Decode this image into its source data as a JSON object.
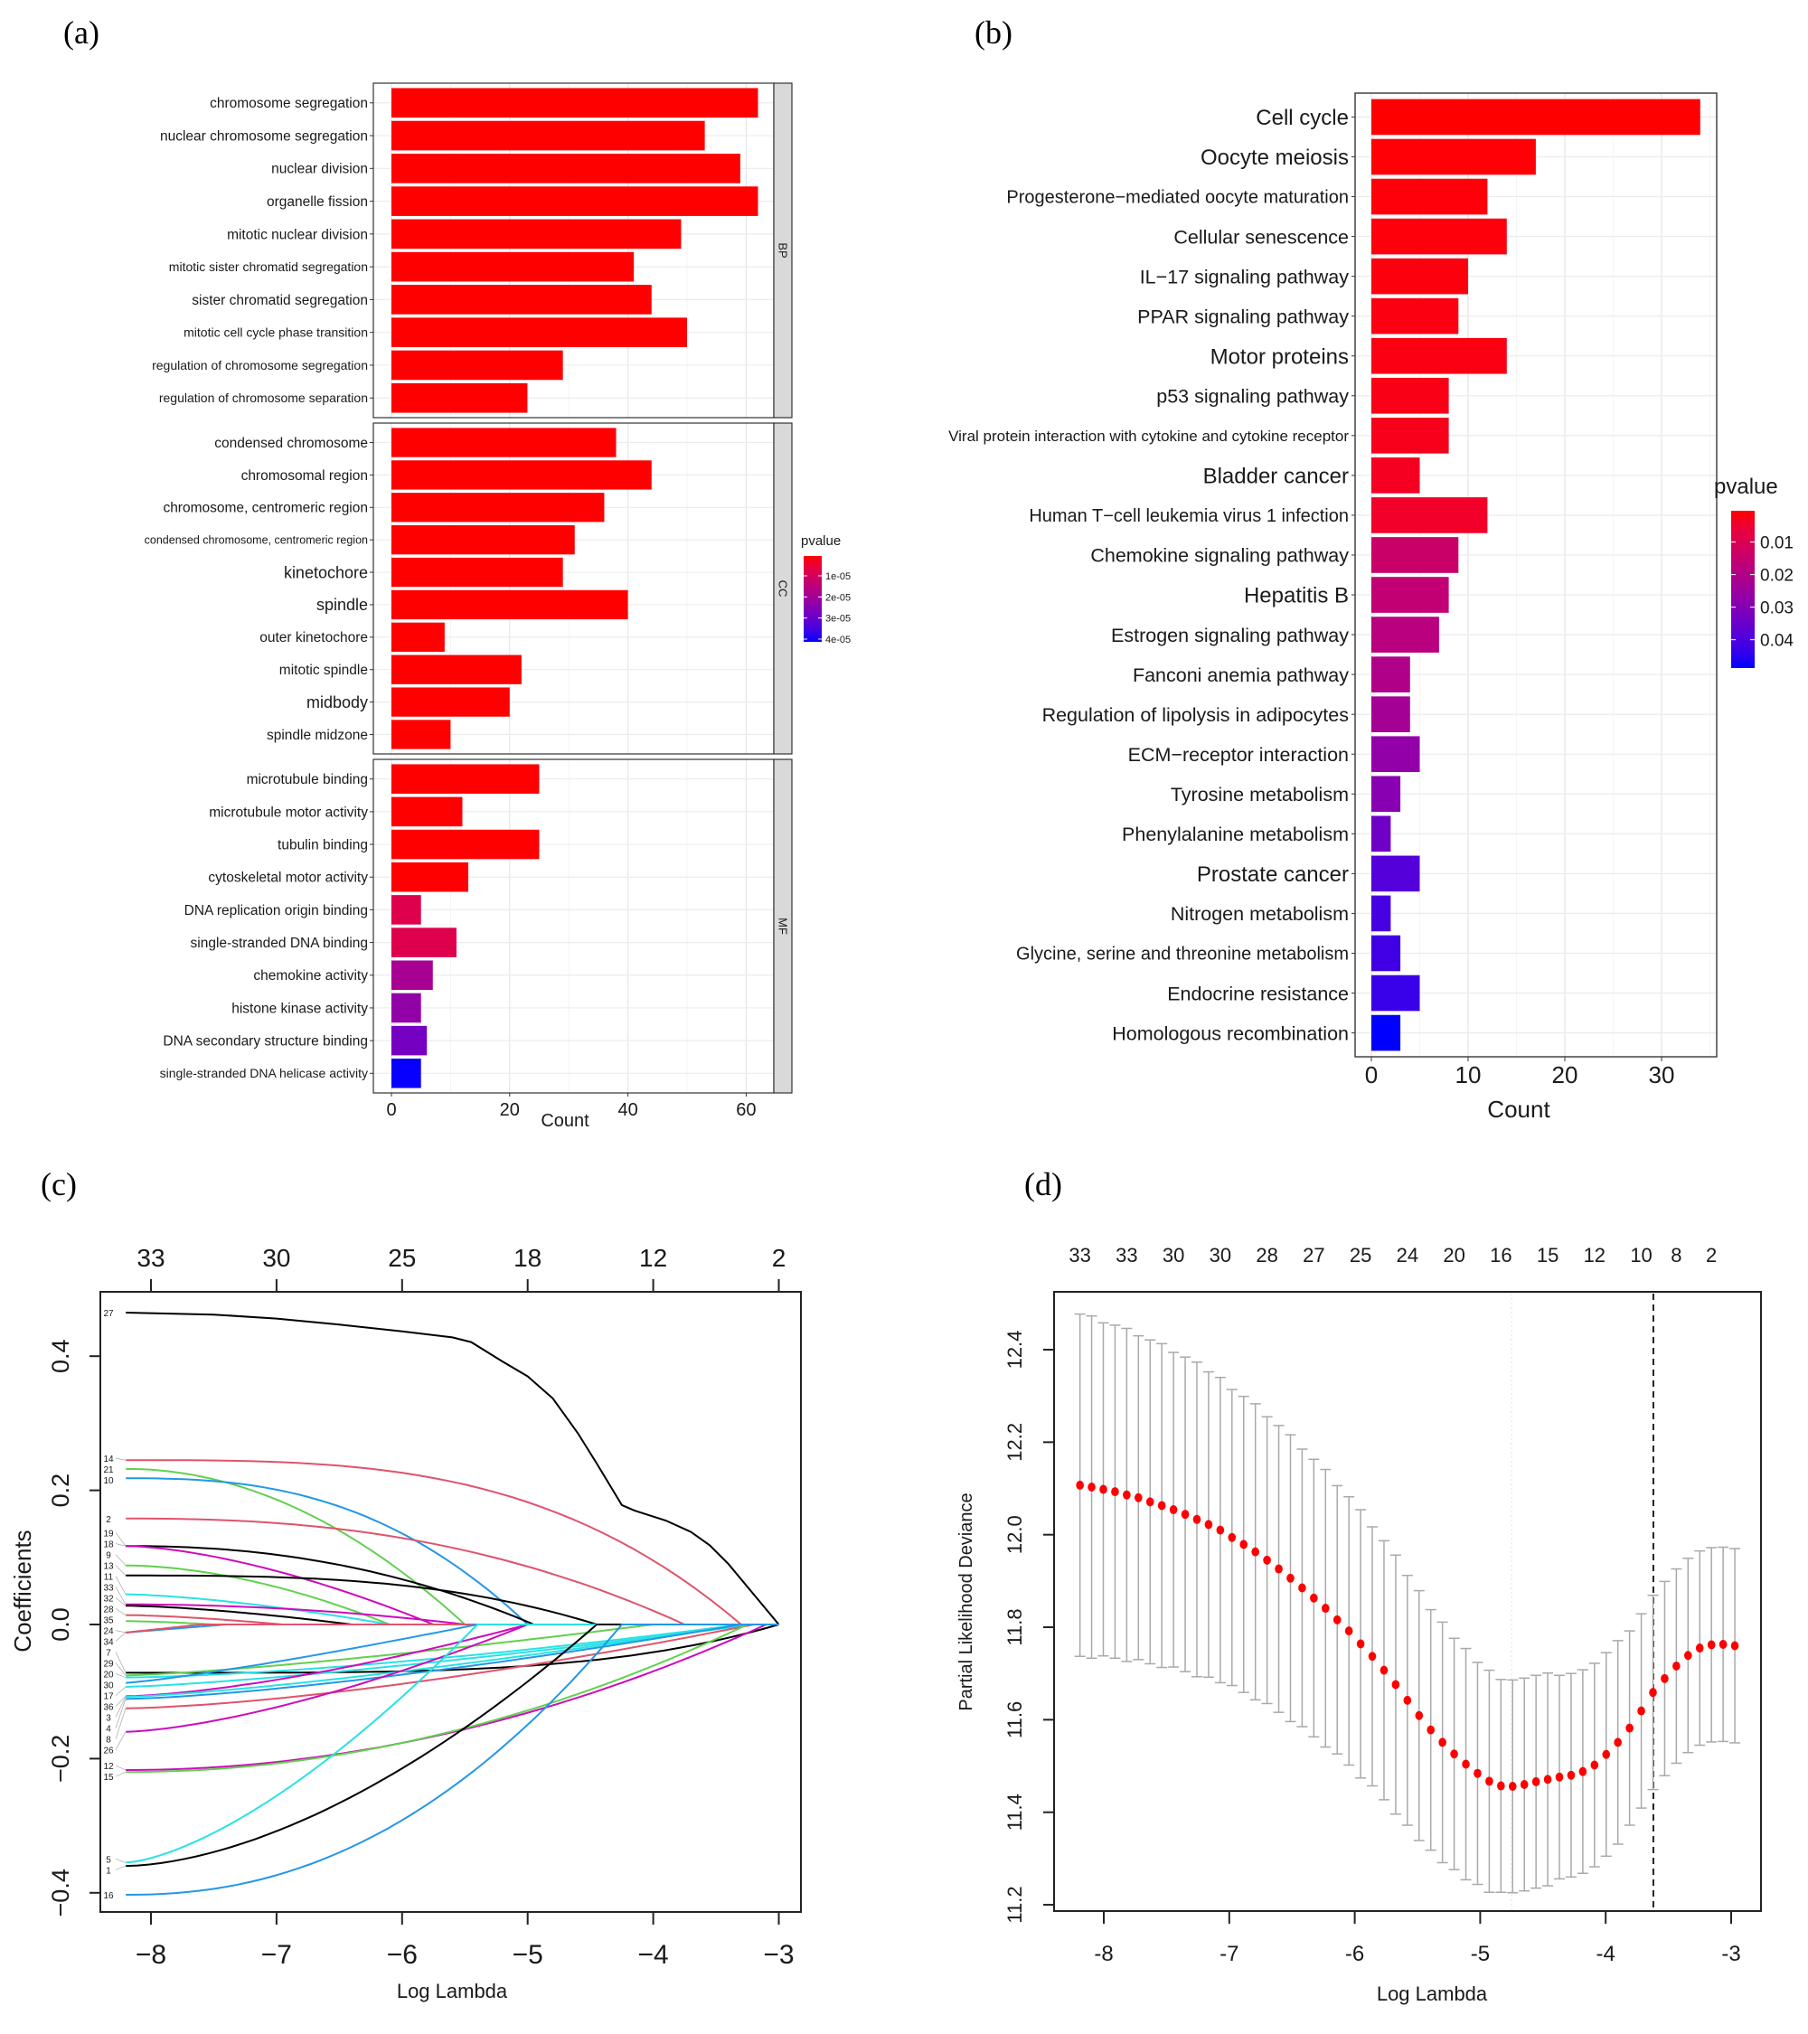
{
  "panel_labels": [
    "(a)",
    "(b)",
    "(c)",
    "(d)"
  ],
  "chart_data": [
    {
      "panel": "(a)",
      "type": "bar",
      "orientation": "horizontal",
      "xlabel": "Count",
      "xticks": [
        "0",
        "20",
        "40",
        "60"
      ],
      "xlim": [
        0,
        65
      ],
      "legend": {
        "title": "pvalue",
        "ticks": [
          "1e-05",
          "2e-05",
          "3e-05",
          "4e-05"
        ],
        "tick_values": [
          1e-05,
          2e-05,
          3e-05,
          4e-05
        ],
        "range": [
          6e-07,
          4.13e-05
        ],
        "low_color": "#FF0000",
        "high_color": "#0000FF",
        "position": "right"
      },
      "facets": [
        {
          "name": "BP",
          "terms": [
            {
              "term": "chromosome segregation",
              "count": 62,
              "pvalue": 1e-10
            },
            {
              "term": "nuclear chromosome segregation",
              "count": 53,
              "pvalue": 1e-10
            },
            {
              "term": "nuclear division",
              "count": 59,
              "pvalue": 1e-10
            },
            {
              "term": "organelle fission",
              "count": 62,
              "pvalue": 1e-10
            },
            {
              "term": "mitotic nuclear division",
              "count": 49,
              "pvalue": 1e-10
            },
            {
              "term": "mitotic sister chromatid segregation",
              "count": 41,
              "pvalue": 1e-10
            },
            {
              "term": "sister chromatid segregation",
              "count": 44,
              "pvalue": 1e-10
            },
            {
              "term": "mitotic cell cycle phase transition",
              "count": 50,
              "pvalue": 1e-10
            },
            {
              "term": "regulation of chromosome segregation",
              "count": 29,
              "pvalue": 1e-10
            },
            {
              "term": "regulation of chromosome separation",
              "count": 23,
              "pvalue": 1e-10
            }
          ]
        },
        {
          "name": "CC",
          "terms": [
            {
              "term": "condensed chromosome",
              "count": 38,
              "pvalue": 1e-10
            },
            {
              "term": "chromosomal region",
              "count": 44,
              "pvalue": 1e-10
            },
            {
              "term": "chromosome, centromeric region",
              "count": 36,
              "pvalue": 1e-10
            },
            {
              "term": "condensed chromosome, centromeric region",
              "count": 31,
              "pvalue": 1e-10
            },
            {
              "term": "kinetochore",
              "count": 29,
              "pvalue": 1e-10
            },
            {
              "term": "spindle",
              "count": 40,
              "pvalue": 1e-10
            },
            {
              "term": "outer kinetochore",
              "count": 9,
              "pvalue": 1e-09
            },
            {
              "term": "mitotic spindle",
              "count": 22,
              "pvalue": 1e-10
            },
            {
              "term": "midbody",
              "count": 20,
              "pvalue": 1e-10
            },
            {
              "term": "spindle midzone",
              "count": 10,
              "pvalue": 1e-09
            }
          ]
        },
        {
          "name": "MF",
          "terms": [
            {
              "term": "microtubule binding",
              "count": 25,
              "pvalue": 1e-08
            },
            {
              "term": "microtubule motor activity",
              "count": 12,
              "pvalue": 1e-08
            },
            {
              "term": "tubulin binding",
              "count": 25,
              "pvalue": 1e-08
            },
            {
              "term": "cytoskeletal motor activity",
              "count": 13,
              "pvalue": 1e-08
            },
            {
              "term": "DNA replication origin binding",
              "count": 5,
              "pvalue": 8e-06
            },
            {
              "term": "single-stranded DNA binding",
              "count": 11,
              "pvalue": 8e-06
            },
            {
              "term": "chemokine activity",
              "count": 7,
              "pvalue": 1.9e-05
            },
            {
              "term": "histone kinase activity",
              "count": 5,
              "pvalue": 2.3e-05
            },
            {
              "term": "DNA secondary structure binding",
              "count": 6,
              "pvalue": 2.8e-05
            },
            {
              "term": "single-stranded DNA helicase activity",
              "count": 5,
              "pvalue": 4.1e-05
            }
          ]
        }
      ]
    },
    {
      "panel": "(b)",
      "type": "bar",
      "orientation": "horizontal",
      "xlabel": "Count",
      "xticks": [
        "0",
        "10",
        "20",
        "30"
      ],
      "xlim": [
        0,
        35
      ],
      "legend": {
        "title": "pvalue",
        "ticks": [
          "0.01",
          "0.02",
          "0.03",
          "0.04"
        ],
        "tick_values": [
          0.01,
          0.02,
          0.03,
          0.04
        ],
        "range": [
          0.0004,
          0.0487
        ],
        "low_color": "#FF0000",
        "high_color": "#0000FF",
        "position": "right"
      },
      "terms": [
        {
          "term": "Cell cycle",
          "count": 34,
          "pvalue": 0.0004
        },
        {
          "term": "Oocyte meiosis",
          "count": 17,
          "pvalue": 0.0006
        },
        {
          "term": "Progesterone−mediated oocyte maturation",
          "count": 12,
          "pvalue": 0.0008
        },
        {
          "term": "Cellular senescence",
          "count": 14,
          "pvalue": 0.001
        },
        {
          "term": "IL−17 signaling pathway",
          "count": 10,
          "pvalue": 0.0012
        },
        {
          "term": "PPAR signaling pathway",
          "count": 9,
          "pvalue": 0.0014
        },
        {
          "term": "Motor proteins",
          "count": 14,
          "pvalue": 0.0016
        },
        {
          "term": "p53 signaling pathway",
          "count": 8,
          "pvalue": 0.002
        },
        {
          "term": "Viral protein interaction with cytokine and cytokine receptor",
          "count": 8,
          "pvalue": 0.0025
        },
        {
          "term": "Bladder cancer",
          "count": 5,
          "pvalue": 0.003
        },
        {
          "term": "Human T−cell leukemia virus 1 infection",
          "count": 12,
          "pvalue": 0.004
        },
        {
          "term": "Chemokine signaling pathway",
          "count": 9,
          "pvalue": 0.014
        },
        {
          "term": "Hepatitis B",
          "count": 8,
          "pvalue": 0.016
        },
        {
          "term": "Estrogen signaling pathway",
          "count": 7,
          "pvalue": 0.018
        },
        {
          "term": "Fanconi anemia pathway",
          "count": 4,
          "pvalue": 0.02
        },
        {
          "term": "Regulation of lipolysis in adipocytes",
          "count": 4,
          "pvalue": 0.023
        },
        {
          "term": "ECM−receptor interaction",
          "count": 5,
          "pvalue": 0.027
        },
        {
          "term": "Tyrosine metabolism",
          "count": 3,
          "pvalue": 0.029
        },
        {
          "term": "Phenylalanine metabolism",
          "count": 2,
          "pvalue": 0.034
        },
        {
          "term": "Prostate cancer",
          "count": 5,
          "pvalue": 0.039
        },
        {
          "term": "Nitrogen metabolism",
          "count": 2,
          "pvalue": 0.041
        },
        {
          "term": "Glycine, serine and threonine metabolism",
          "count": 3,
          "pvalue": 0.042
        },
        {
          "term": "Endocrine resistance",
          "count": 5,
          "pvalue": 0.043
        },
        {
          "term": "Homologous recombination",
          "count": 3,
          "pvalue": 0.049
        }
      ]
    },
    {
      "panel": "(c)",
      "type": "line",
      "xlabel": "Log Lambda",
      "ylabel": "Coefficients",
      "xlim": [
        -8.4,
        -2.8
      ],
      "ylim": [
        -0.43,
        0.5
      ],
      "xticks": [
        "−8",
        "−7",
        "−6",
        "−5",
        "−4",
        "−3"
      ],
      "xtick_values": [
        -8,
        -7,
        -6,
        -5,
        -4,
        -3
      ],
      "yticks": [
        "−0.4",
        "−0.2",
        "0.0",
        "0.2",
        "0.4"
      ],
      "ytick_values": [
        -0.4,
        -0.2,
        0.0,
        0.2,
        0.4
      ],
      "top_axis": {
        "labels": [
          "33",
          "30",
          "25",
          "18",
          "12",
          "2"
        ],
        "at": [
          -8,
          -7,
          -6,
          -5,
          -4,
          -3
        ]
      },
      "series": [
        {
          "name": "27",
          "color": "#000000",
          "points": [
            [
              -8.2,
              0.465
            ],
            [
              -7.5,
              0.462
            ],
            [
              -7,
              0.456
            ],
            [
              -6.5,
              0.447
            ],
            [
              -6,
              0.437
            ],
            [
              -5.6,
              0.428
            ],
            [
              -5.45,
              0.421
            ],
            [
              -5.2,
              0.392
            ],
            [
              -5,
              0.37
            ],
            [
              -4.8,
              0.337
            ],
            [
              -4.6,
              0.285
            ],
            [
              -4.45,
              0.24
            ],
            [
              -4.25,
              0.178
            ],
            [
              -4.15,
              0.17
            ],
            [
              -3.9,
              0.155
            ],
            [
              -3.7,
              0.138
            ],
            [
              -3.55,
              0.118
            ],
            [
              -3.4,
              0.09
            ],
            [
              -3.2,
              0.045
            ],
            [
              -3.0,
              0
            ]
          ]
        },
        {
          "name": "14",
          "color": "#DF536B",
          "start": 0.245,
          "zero_at": -3.3,
          "power": 3.2
        },
        {
          "name": "21",
          "color": "#61D04F",
          "start": 0.232,
          "zero_at": -5.5,
          "power": 2.0
        },
        {
          "name": "10",
          "color": "#2297E6",
          "start": 0.218,
          "zero_at": -5.0,
          "power": 2.6
        },
        {
          "name": "2",
          "color": "#DF536B",
          "start": 0.158,
          "zero_at": -3.75,
          "power": 2.4
        },
        {
          "name": "19",
          "color": "#000000",
          "start": 0.117,
          "zero_at": -4.95,
          "power": 2.2
        },
        {
          "name": "18",
          "color": "#CD0BBC",
          "start": 0.117,
          "zero_at": -5.75,
          "power": 1.6
        },
        {
          "name": "9",
          "color": "#61D04F",
          "start": 0.088,
          "zero_at": -6.1,
          "power": 1.8
        },
        {
          "name": "13",
          "color": "#000000",
          "start": 0.073,
          "zero_at": -4.45,
          "power": 3.0
        },
        {
          "name": "11",
          "color": "#28E2E5",
          "start": 0.045,
          "zero_at": -6.1,
          "power": 1.5
        },
        {
          "name": "33",
          "color": "#CD0BBC",
          "start": 0.03,
          "zero_at": -5.5,
          "power": 2.0
        },
        {
          "name": "32",
          "color": "#000000",
          "start": 0.028,
          "zero_at": -6.4,
          "power": 1.5
        },
        {
          "name": "28",
          "color": "#DF536B",
          "start": 0.014,
          "zero_at": -6.95,
          "power": 1.5
        },
        {
          "name": "35",
          "color": "#61D04F",
          "start": 0.005,
          "zero_at": -7.5,
          "power": 1.5
        },
        {
          "name": "24",
          "color": "#2297E6",
          "start": -0.012,
          "zero_at": -7.4,
          "power": 1.0
        },
        {
          "name": "34",
          "color": "#DF536B",
          "start": -0.012,
          "zero_at": -7.6,
          "power": 1.0
        },
        {
          "name": "7",
          "color": "#000000",
          "start": -0.072,
          "zero_at": -3.0,
          "power": 4.0
        },
        {
          "name": "29",
          "color": "#61D04F",
          "start": -0.076,
          "zero_at": -4.0,
          "power": 1.3
        },
        {
          "name": "20",
          "color": "#28E2E5",
          "start": -0.079,
          "zero_at": -3.3,
          "power": 1.5
        },
        {
          "name": "30",
          "color": "#2297E6",
          "start": -0.087,
          "zero_at": -5.4,
          "power": 1.2
        },
        {
          "name": "17",
          "color": "#28E2E5",
          "start": -0.093,
          "zero_at": -3.2,
          "power": 1.3
        },
        {
          "name": "36",
          "color": "#CD0BBC",
          "start": -0.107,
          "zero_at": -5.0,
          "power": 1.5
        },
        {
          "name": "3",
          "color": "#28E2E5",
          "start": -0.108,
          "zero_at": -3.3,
          "power": 1.3
        },
        {
          "name": "4",
          "color": "#2297E6",
          "start": -0.111,
          "zero_at": -3.3,
          "power": 1.4
        },
        {
          "name": "8",
          "color": "#DF536B",
          "start": -0.125,
          "zero_at": -3.2,
          "power": 1.5
        },
        {
          "name": "26",
          "color": "#CD0BBC",
          "start": -0.16,
          "zero_at": -5.0,
          "power": 1.5
        },
        {
          "name": "12",
          "color": "#CD0BBC",
          "start": -0.217,
          "zero_at": -3.1,
          "power": 2.0
        },
        {
          "name": "15",
          "color": "#61D04F",
          "start": -0.22,
          "zero_at": -3.25,
          "power": 2.0
        },
        {
          "name": "5",
          "color": "#28E2E5",
          "start": -0.355,
          "zero_at": -5.4,
          "power": 1.5
        },
        {
          "name": "1",
          "color": "#000000",
          "start": -0.36,
          "zero_at": -4.45,
          "power": 1.7
        },
        {
          "name": "16",
          "color": "#2297E6",
          "start": -0.403,
          "zero_at": -4.25,
          "power": 2.2
        }
      ]
    },
    {
      "panel": "(d)",
      "type": "scatter",
      "subtype": "cv-deviance with error bars",
      "xlabel": "Log Lambda",
      "ylabel": "Partial Likelihood Deviance",
      "xlim": [
        -8.4,
        -2.8
      ],
      "ylim": [
        11.18,
        12.53
      ],
      "xticks": [
        "-8",
        "-7",
        "-6",
        "-5",
        "-4",
        "-3"
      ],
      "xtick_values": [
        -8,
        -7,
        -6,
        -5,
        -4,
        -3
      ],
      "yticks": [
        "11.2",
        "11.4",
        "11.6",
        "11.8",
        "12.0",
        "12.2",
        "12.4"
      ],
      "ytick_values": [
        11.2,
        11.4,
        11.6,
        11.8,
        12.0,
        12.2,
        12.4
      ],
      "x_start": -8.19,
      "x_step": 0.0932,
      "mean": [
        12.107,
        12.103,
        12.098,
        12.093,
        12.086,
        12.08,
        12.071,
        12.063,
        12.054,
        12.044,
        12.033,
        12.022,
        12.01,
        11.994,
        11.979,
        11.963,
        11.945,
        11.926,
        11.906,
        11.885,
        11.863,
        11.841,
        11.816,
        11.792,
        11.764,
        11.737,
        11.707,
        11.676,
        11.642,
        11.609,
        11.578,
        11.551,
        11.526,
        11.504,
        11.484,
        11.467,
        11.457,
        11.456,
        11.46,
        11.466,
        11.471,
        11.476,
        11.48,
        11.488,
        11.502,
        11.525,
        11.551,
        11.582,
        11.619,
        11.659,
        11.689,
        11.716,
        11.739,
        11.755,
        11.762,
        11.763,
        11.76
      ],
      "se": [
        0.37,
        0.37,
        0.36,
        0.36,
        0.36,
        0.35,
        0.35,
        0.35,
        0.34,
        0.34,
        0.34,
        0.33,
        0.33,
        0.32,
        0.32,
        0.32,
        0.31,
        0.31,
        0.31,
        0.3,
        0.3,
        0.3,
        0.29,
        0.29,
        0.29,
        0.28,
        0.28,
        0.28,
        0.27,
        0.27,
        0.26,
        0.26,
        0.25,
        0.25,
        0.24,
        0.24,
        0.23,
        0.23,
        0.23,
        0.23,
        0.23,
        0.22,
        0.22,
        0.22,
        0.22,
        0.22,
        0.22,
        0.21,
        0.21,
        0.21,
        0.21,
        0.21,
        0.21,
        0.21,
        0.21,
        0.21,
        0.21
      ],
      "top_axis": {
        "labels": [
          "33",
          "33",
          "30",
          "30",
          "28",
          "27",
          "25",
          "24",
          "20",
          "16",
          "15",
          "12",
          "10",
          "8",
          "2"
        ],
        "point_index": [
          0,
          4,
          8,
          12,
          16,
          20,
          24,
          28,
          32,
          36,
          40,
          44,
          48,
          51,
          54
        ]
      },
      "vlines": [
        {
          "x": -4.75,
          "style": "dotted-light"
        },
        {
          "x": -3.62,
          "style": "dashed"
        }
      ],
      "point_color": "#FF0000",
      "errorbar_color": "#A9A9A9"
    }
  ]
}
